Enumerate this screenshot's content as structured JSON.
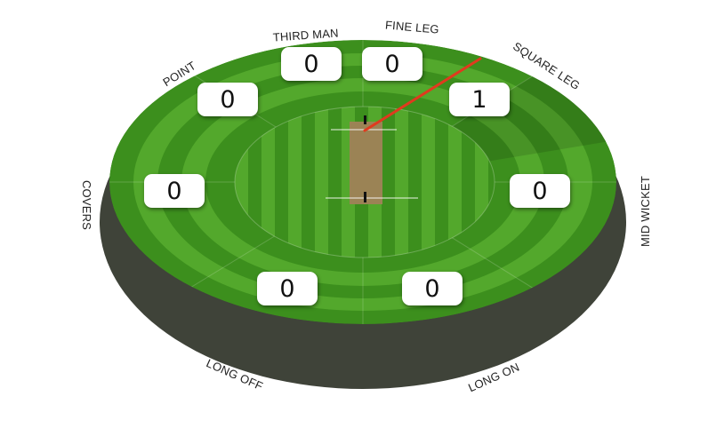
{
  "field": {
    "colors": {
      "boundary": "#3f4339",
      "grass_dark": "#3c8f1d",
      "grass_light": "#53a82c",
      "pitch": "#9b8355",
      "shot": "#e03a1e"
    }
  },
  "zones": [
    {
      "id": "fine-leg",
      "label": "FINE LEG",
      "runs": "0"
    },
    {
      "id": "square-leg",
      "label": "SQUARE LEG",
      "runs": "1"
    },
    {
      "id": "mid-wicket",
      "label": "MID WICKET",
      "runs": "0"
    },
    {
      "id": "long-on",
      "label": "LONG ON",
      "runs": "0"
    },
    {
      "id": "long-off",
      "label": "LONG OFF",
      "runs": "0"
    },
    {
      "id": "covers",
      "label": "COVERS",
      "runs": "0"
    },
    {
      "id": "point",
      "label": "POINT",
      "runs": "0"
    },
    {
      "id": "third-man",
      "label": "THIRD MAN",
      "runs": "0"
    }
  ],
  "shots": [
    {
      "zone": "square-leg",
      "runs": 1
    }
  ]
}
